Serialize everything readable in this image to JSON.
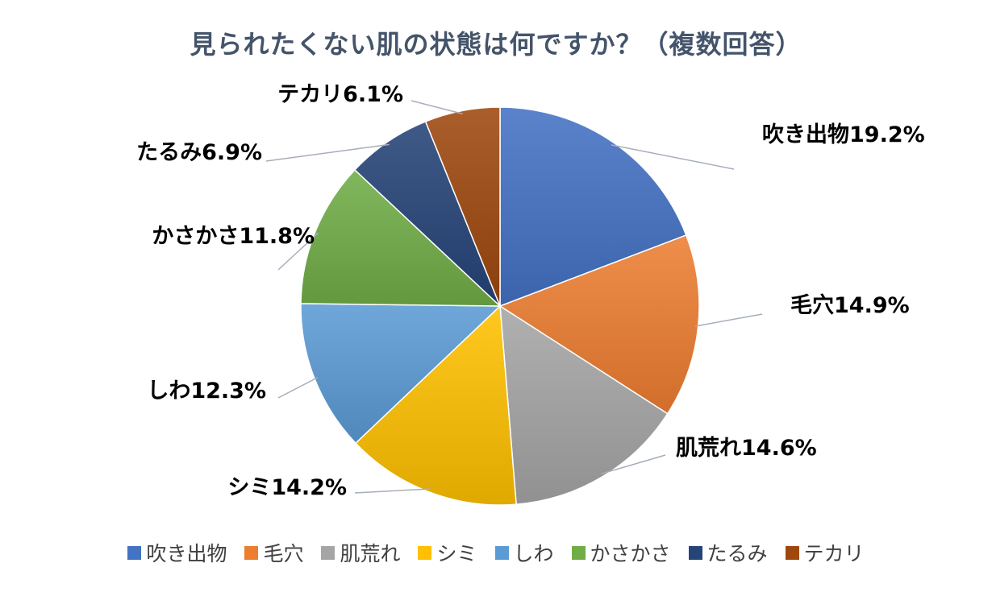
{
  "chart_data": {
    "type": "pie",
    "title": "見られたくない肌の状態は何ですか？（複数回答）",
    "categories": [
      "吹き出物",
      "毛穴",
      "肌荒れ",
      "シミ",
      "しわ",
      "かさかさ",
      "たるみ",
      "テカリ"
    ],
    "values": [
      19.2,
      14.9,
      14.6,
      14.2,
      12.3,
      11.8,
      6.9,
      6.1
    ],
    "data_labels": [
      "吹き出物19.2%",
      "毛穴14.9%",
      "肌荒れ14.6%",
      "シミ14.2%",
      "しわ12.3%",
      "かさかさ11.8%",
      "たるみ6.9%",
      "テカリ6.1%"
    ],
    "colors": [
      "#4472c4",
      "#ed7d31",
      "#a5a5a5",
      "#ffc000",
      "#5b9bd5",
      "#70ad47",
      "#264478",
      "#9e480e"
    ],
    "legend_position": "bottom",
    "unit": "%"
  }
}
